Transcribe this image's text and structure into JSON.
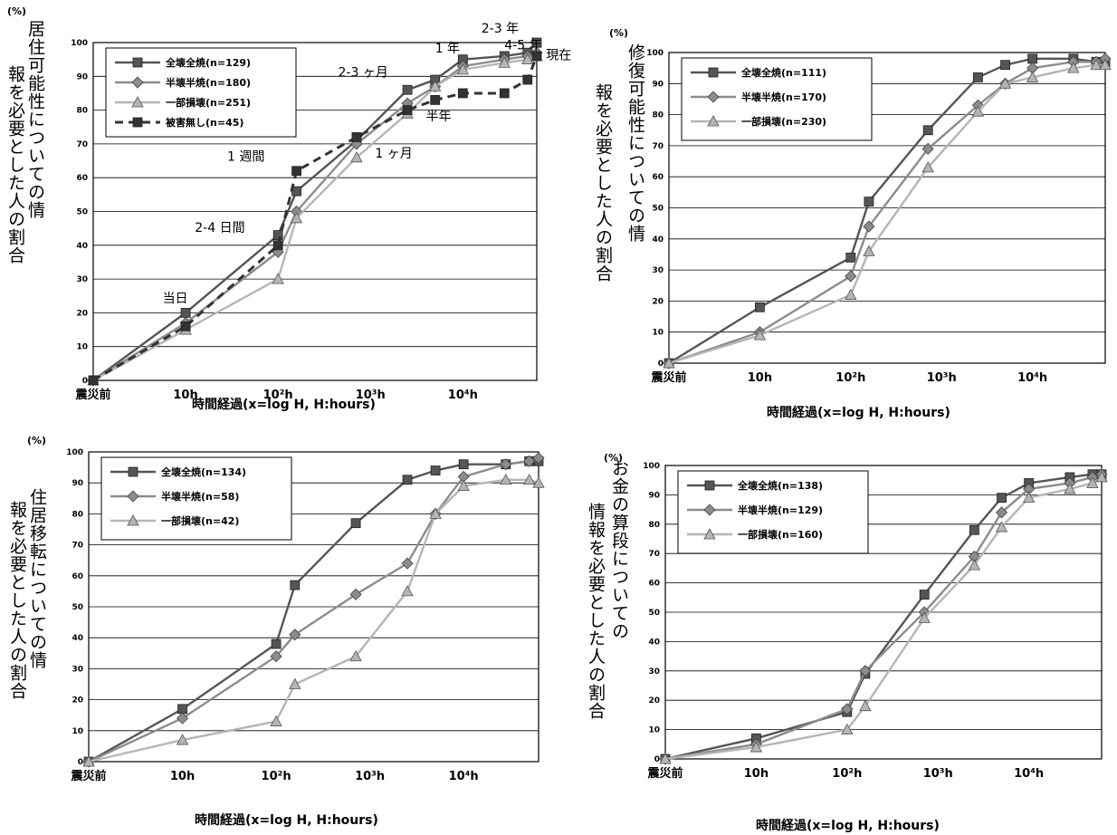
{
  "figure": {
    "unit_label": "(%)",
    "x_axis_title": "時間経過(x=log H, H:hours)",
    "x_tick_labels": [
      "震災前",
      "10h",
      "10²h",
      "10³h",
      "10⁴h"
    ]
  },
  "chart_data": [
    {
      "type": "line",
      "ylabel": "居住可能性についての情報を必要とした人の割合",
      "xlabel": "時間経過(x=log H, H:hours)",
      "x_scale": "log10(hours)",
      "xlim": [
        0,
        4.8
      ],
      "ylim": [
        0,
        100
      ],
      "yticks": [
        0,
        10,
        20,
        30,
        40,
        50,
        60,
        70,
        80,
        90,
        100
      ],
      "grid": "horizontal",
      "legend_position": "top-left",
      "series": [
        {
          "name": "全壊全焼(n=129)",
          "marker": "square",
          "color": "#555555",
          "x": [
            0,
            1,
            2,
            2.2,
            2.85,
            3.4,
            3.7,
            4.0,
            4.45,
            4.7,
            4.8
          ],
          "y": [
            0,
            20,
            43,
            56,
            71,
            86,
            89,
            95,
            96,
            97,
            100
          ]
        },
        {
          "name": "半壊半焼(n=180)",
          "marker": "diamond",
          "color": "#8c8c8c",
          "x": [
            0,
            1,
            2,
            2.2,
            2.85,
            3.4,
            3.7,
            4.0,
            4.45,
            4.7,
            4.8
          ],
          "y": [
            0,
            17,
            38,
            50,
            70,
            82,
            87,
            93,
            95,
            96,
            97
          ]
        },
        {
          "name": "一部損壊(n=251)",
          "marker": "triangle",
          "color": "#b5b5b5",
          "x": [
            0,
            1,
            2,
            2.2,
            2.85,
            3.4,
            3.7,
            4.0,
            4.45,
            4.7,
            4.8
          ],
          "y": [
            0,
            15,
            30,
            48,
            66,
            79,
            87,
            92,
            94,
            95,
            96
          ]
        },
        {
          "name": "被害無し(n=45)",
          "marker": "square",
          "color": "#333333",
          "dashed": true,
          "x": [
            0,
            1,
            2,
            2.2,
            2.85,
            3.4,
            3.7,
            4.0,
            4.45,
            4.7,
            4.8
          ],
          "y": [
            0,
            16,
            40,
            62,
            72,
            80,
            83,
            85,
            85,
            89,
            96
          ]
        }
      ],
      "annotations": [
        {
          "text": "当日",
          "x": 0.75,
          "y": 23
        },
        {
          "text": "2-4 日間",
          "x": 1.1,
          "y": 44
        },
        {
          "text": "1 週間",
          "x": 1.45,
          "y": 65
        },
        {
          "text": "1 ヶ月",
          "x": 3.05,
          "y": 66
        },
        {
          "text": "半年",
          "x": 3.6,
          "y": 77
        },
        {
          "text": "2-3 ヶ月",
          "x": 2.65,
          "y": 90
        },
        {
          "text": "1 年",
          "x": 3.7,
          "y": 97
        },
        {
          "text": "2-3 年",
          "x": 4.2,
          "y": 103
        },
        {
          "text": "4-5 年",
          "x": 4.45,
          "y": 98
        },
        {
          "text": "現在",
          "x": 4.9,
          "y": 95
        }
      ]
    },
    {
      "type": "line",
      "ylabel": "修復可能性についての情報を必要とした人の割合",
      "xlabel": "時間経過(x=log H, H:hours)",
      "x_scale": "log10(hours)",
      "xlim": [
        0,
        4.8
      ],
      "ylim": [
        0,
        100
      ],
      "yticks": [
        0,
        10,
        20,
        30,
        40,
        50,
        60,
        70,
        80,
        90,
        100
      ],
      "grid": "horizontal",
      "legend_position": "top-left",
      "series": [
        {
          "name": "全壊全焼(n=111)",
          "marker": "square",
          "color": "#555555",
          "x": [
            0,
            1,
            2,
            2.2,
            2.85,
            3.4,
            3.7,
            4.0,
            4.45,
            4.7,
            4.8
          ],
          "y": [
            0,
            18,
            34,
            52,
            75,
            92,
            96,
            98,
            98,
            97,
            97
          ]
        },
        {
          "name": "半壊半焼(n=170)",
          "marker": "diamond",
          "color": "#8c8c8c",
          "x": [
            0,
            1,
            2,
            2.2,
            2.85,
            3.4,
            3.7,
            4.0,
            4.45,
            4.7,
            4.8
          ],
          "y": [
            0,
            10,
            28,
            44,
            69,
            83,
            90,
            95,
            97,
            97,
            98
          ]
        },
        {
          "name": "一部損壊(n=230)",
          "marker": "triangle",
          "color": "#b5b5b5",
          "x": [
            0,
            1,
            2,
            2.2,
            2.85,
            3.4,
            3.7,
            4.0,
            4.45,
            4.7,
            4.8
          ],
          "y": [
            0,
            9,
            22,
            36,
            63,
            81,
            90,
            92,
            95,
            96,
            96
          ]
        }
      ]
    },
    {
      "type": "line",
      "ylabel": "住居移転についての情報を必要とした人の割合",
      "xlabel": "時間経過(x=log H, H:hours)",
      "x_scale": "log10(hours)",
      "xlim": [
        0,
        4.8
      ],
      "ylim": [
        0,
        100
      ],
      "yticks": [
        0,
        10,
        20,
        30,
        40,
        50,
        60,
        70,
        80,
        90,
        100
      ],
      "grid": "horizontal",
      "legend_position": "top-left",
      "series": [
        {
          "name": "全壊全焼(n=134)",
          "marker": "square",
          "color": "#555555",
          "x": [
            0,
            1,
            2,
            2.2,
            2.85,
            3.4,
            3.7,
            4.0,
            4.45,
            4.7,
            4.8
          ],
          "y": [
            0,
            17,
            38,
            57,
            77,
            91,
            94,
            96,
            96,
            97,
            97
          ]
        },
        {
          "name": "半壊半焼(n=58)",
          "marker": "diamond",
          "color": "#8c8c8c",
          "x": [
            0,
            1,
            2,
            2.2,
            2.85,
            3.4,
            3.7,
            4.0,
            4.45,
            4.7,
            4.8
          ],
          "y": [
            0,
            14,
            34,
            41,
            54,
            64,
            80,
            92,
            96,
            97,
            98
          ]
        },
        {
          "name": "一部損壊(n=42)",
          "marker": "triangle",
          "color": "#b5b5b5",
          "x": [
            0,
            1,
            2,
            2.2,
            2.85,
            3.4,
            3.7,
            4.0,
            4.45,
            4.7,
            4.8
          ],
          "y": [
            0,
            7,
            13,
            25,
            34,
            55,
            80,
            89,
            91,
            91,
            90
          ]
        }
      ]
    },
    {
      "type": "line",
      "ylabel": "お金の算段についての情報を必要とした人の割合",
      "xlabel": "時間経過(x=log H, H:hours)",
      "x_scale": "log10(hours)",
      "xlim": [
        0,
        4.8
      ],
      "ylim": [
        0,
        100
      ],
      "yticks": [
        0,
        10,
        20,
        30,
        40,
        50,
        60,
        70,
        80,
        90,
        100
      ],
      "grid": "horizontal",
      "legend_position": "top-left",
      "series": [
        {
          "name": "全壊全焼(n=138)",
          "marker": "square",
          "color": "#555555",
          "x": [
            0,
            1,
            2,
            2.2,
            2.85,
            3.4,
            3.7,
            4.0,
            4.45,
            4.7,
            4.8
          ],
          "y": [
            0,
            7,
            16,
            29,
            56,
            78,
            89,
            94,
            96,
            97,
            97
          ]
        },
        {
          "name": "半壊半焼(n=129)",
          "marker": "diamond",
          "color": "#8c8c8c",
          "x": [
            0,
            1,
            2,
            2.2,
            2.85,
            3.4,
            3.7,
            4.0,
            4.45,
            4.7,
            4.8
          ],
          "y": [
            0,
            5,
            17,
            30,
            50,
            69,
            84,
            92,
            94,
            96,
            97
          ]
        },
        {
          "name": "一部損壊(n=160)",
          "marker": "triangle",
          "color": "#b5b5b5",
          "x": [
            0,
            1,
            2,
            2.2,
            2.85,
            3.4,
            3.7,
            4.0,
            4.45,
            4.7,
            4.8
          ],
          "y": [
            0,
            4,
            10,
            18,
            48,
            66,
            79,
            89,
            92,
            94,
            96
          ]
        }
      ]
    }
  ]
}
